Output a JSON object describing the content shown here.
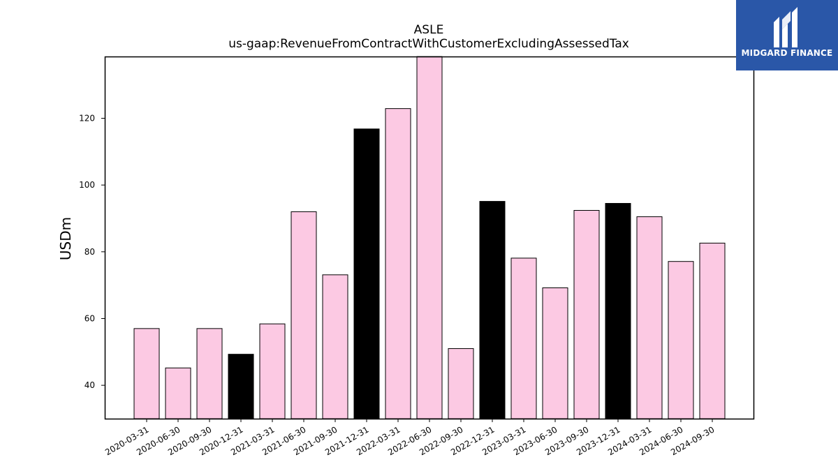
{
  "brand": {
    "name": "MIDGARD FINANCE",
    "bg_color": "#2a57a8"
  },
  "chart_data": {
    "type": "bar",
    "title": "ASLE",
    "subtitle": "us-gaap:RevenueFromContractWithCustomerExcludingAssessedTax",
    "xlabel": "",
    "ylabel": "USDm",
    "ylim": [
      30,
      138.5
    ],
    "yticks": [
      40,
      60,
      80,
      100,
      120
    ],
    "grid": false,
    "categories": [
      "2020-03-31",
      "2020-06-30",
      "2020-09-30",
      "2020-12-31",
      "2021-03-31",
      "2021-06-30",
      "2021-09-30",
      "2021-12-31",
      "2022-03-31",
      "2022-06-30",
      "2022-09-30",
      "2022-12-31",
      "2023-03-31",
      "2023-06-30",
      "2023-09-30",
      "2023-12-31",
      "2024-03-31",
      "2024-06-30",
      "2024-09-30"
    ],
    "values": [
      57.0,
      45.2,
      57.0,
      49.3,
      58.4,
      92.0,
      73.1,
      116.8,
      122.9,
      138.6,
      51.0,
      95.1,
      78.1,
      69.2,
      92.4,
      94.5,
      90.5,
      77.1,
      82.6
    ],
    "bar_colors": [
      "#fcc9e3",
      "#fcc9e3",
      "#fcc9e3",
      "#000000",
      "#fcc9e3",
      "#fcc9e3",
      "#fcc9e3",
      "#000000",
      "#fcc9e3",
      "#fcc9e3",
      "#fcc9e3",
      "#000000",
      "#fcc9e3",
      "#fcc9e3",
      "#fcc9e3",
      "#000000",
      "#fcc9e3",
      "#fcc9e3",
      "#fcc9e3"
    ],
    "edge_color": "#000000"
  }
}
